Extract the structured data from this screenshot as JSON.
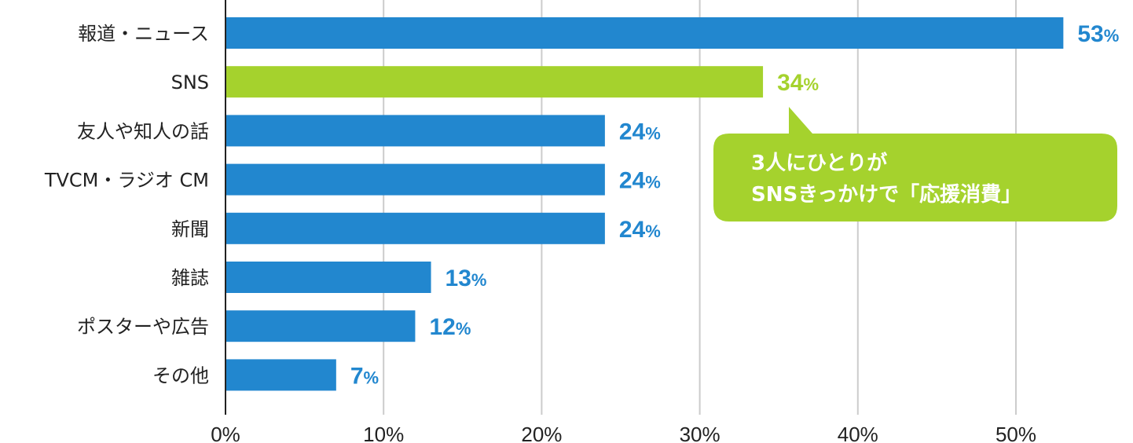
{
  "chart_data": {
    "type": "bar",
    "orientation": "horizontal",
    "categories": [
      "報道・ニュース",
      "SNS",
      "友人や知人の話",
      "TVCM・ラジオ CM",
      "新聞",
      "雑誌",
      "ポスターや広告",
      "その他"
    ],
    "values": [
      53,
      34,
      24,
      24,
      24,
      13,
      12,
      7
    ],
    "value_labels": [
      "53",
      "34",
      "24",
      "24",
      "24",
      "13",
      "12",
      "7"
    ],
    "value_suffix": "%",
    "xlim": [
      0,
      57
    ],
    "x_ticks": [
      0,
      10,
      20,
      30,
      40,
      50
    ],
    "x_tick_labels": [
      "0%",
      "10%",
      "20%",
      "30%",
      "40%",
      "50%"
    ],
    "grid": true,
    "highlight_index": 1,
    "annotation": {
      "lines": [
        "3人にひとりが",
        "SNSきっかけで「応援消費」"
      ],
      "target_category": "SNS"
    },
    "title": "",
    "xlabel": "",
    "ylabel": ""
  },
  "colors": {
    "bar": "#2287cf",
    "highlight": "#a5d22d",
    "grid": "#cccccc",
    "axis": "#222222",
    "text": "#222222"
  }
}
